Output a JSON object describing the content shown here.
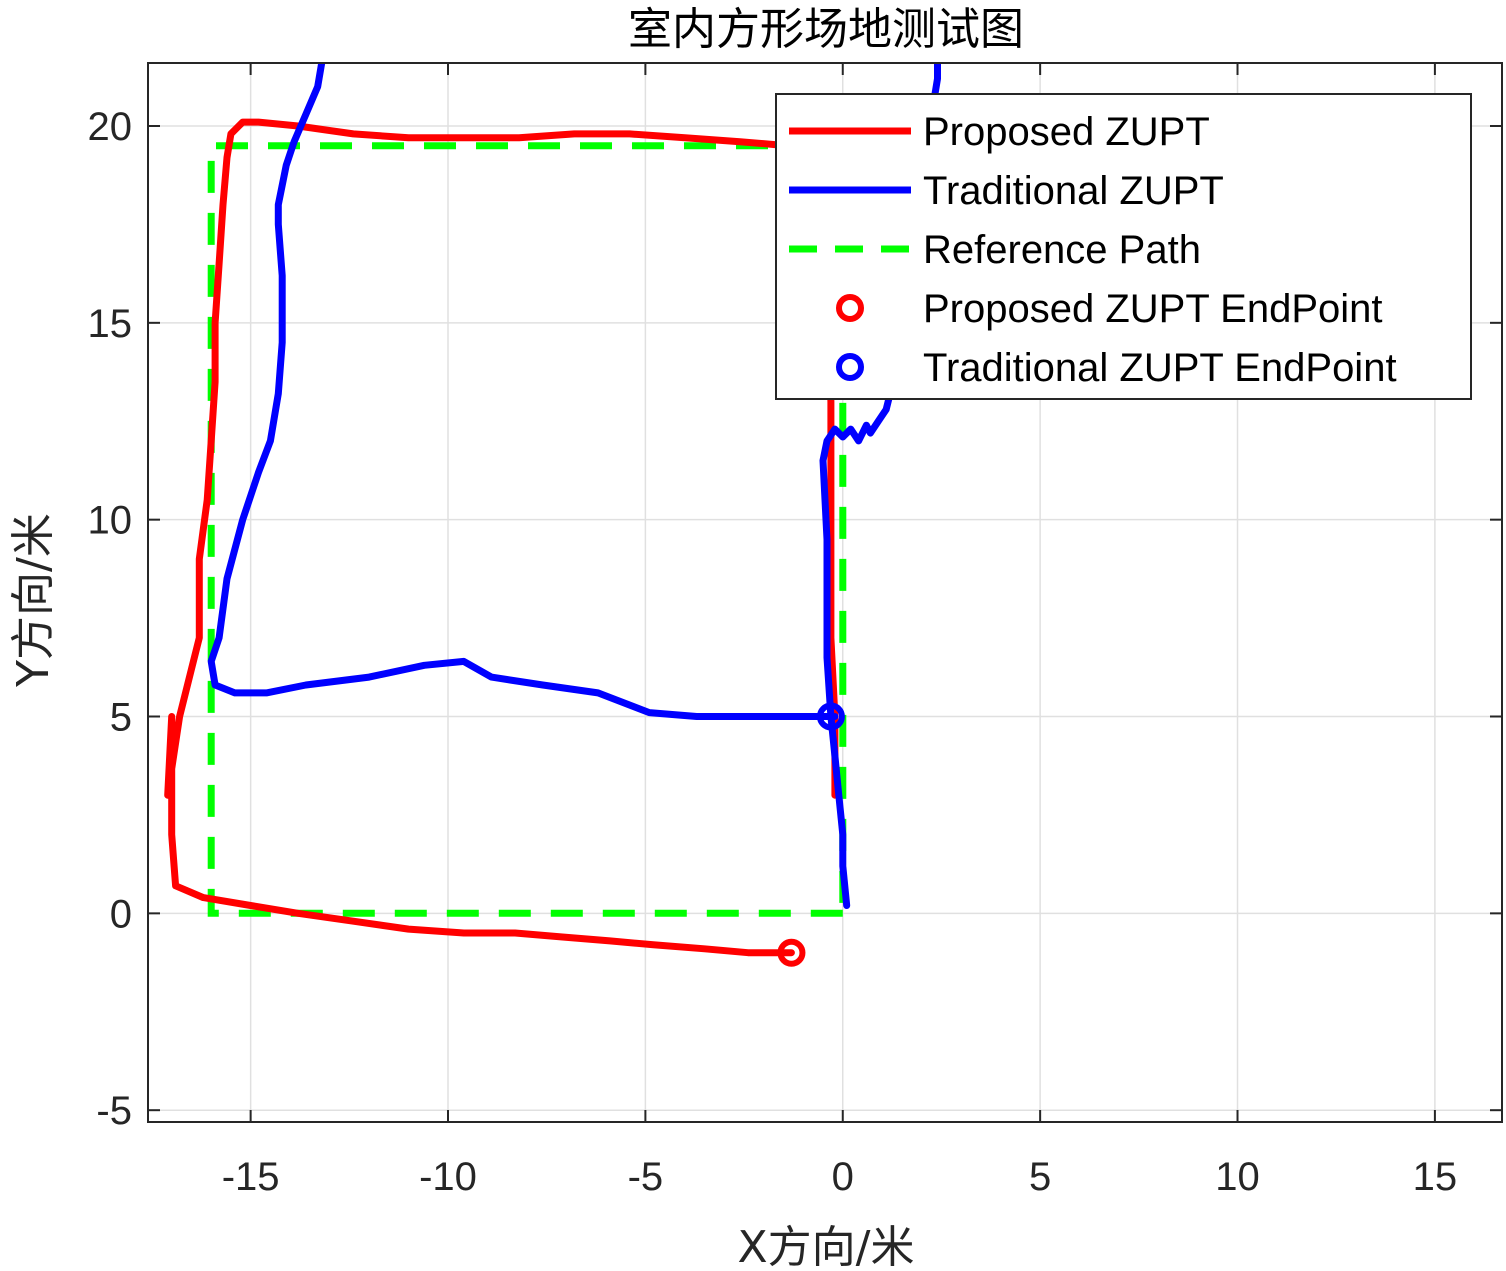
{
  "chart_data": {
    "type": "line",
    "title": "室内方形场地测试图",
    "xlabel": "X方向/米",
    "ylabel": "Y方向/米",
    "xlim": [
      -17.6,
      16.7
    ],
    "ylim": [
      -5.3,
      21.6
    ],
    "xticks": [
      -15,
      -10,
      -5,
      0,
      5,
      10,
      15
    ],
    "yticks": [
      -5,
      0,
      5,
      10,
      15,
      20
    ],
    "grid": true,
    "legend_position": "top-right",
    "colors": {
      "proposed": "#ff0000",
      "traditional": "#0000ff",
      "reference": "#00ff00"
    },
    "series": [
      {
        "name": "Proposed ZUPT",
        "style": "solid",
        "color": "#ff0000",
        "x": [
          -1.3,
          -1.6,
          -2.4,
          -3.5,
          -4.8,
          -5.9,
          -7.1,
          -8.3,
          -9.6,
          -11.0,
          -12.4,
          -13.8,
          -15.0,
          -16.2,
          -16.9,
          -17.0,
          -17.0,
          -17.0,
          -17.1,
          -16.8,
          -16.5,
          -16.3,
          -16.3,
          -16.3,
          -16.1,
          -16.0,
          -15.9,
          -15.9,
          -15.8,
          -15.7,
          -15.6,
          -15.5,
          -15.2,
          -14.8,
          -13.8,
          -12.4,
          -11.0,
          -9.6,
          -8.2,
          -6.8,
          -5.4,
          -4.0,
          -2.6,
          -1.4,
          -0.6,
          -0.4,
          -0.3,
          -0.3,
          -0.3,
          -0.2,
          -0.2,
          -0.2,
          -0.2
        ],
        "y": [
          -1.0,
          -1.0,
          -1.0,
          -0.9,
          -0.8,
          -0.7,
          -0.6,
          -0.5,
          -0.5,
          -0.4,
          -0.2,
          0.0,
          0.2,
          0.4,
          0.7,
          2.0,
          3.5,
          5.0,
          3.0,
          5.0,
          6.2,
          7.0,
          8.0,
          9.0,
          10.5,
          12.0,
          13.5,
          15.0,
          16.5,
          18.0,
          19.2,
          19.8,
          20.1,
          20.1,
          20.0,
          19.8,
          19.7,
          19.7,
          19.7,
          19.8,
          19.8,
          19.7,
          19.6,
          19.5,
          19.0,
          16.0,
          13.0,
          10.0,
          7.0,
          5.0,
          4.0,
          3.5,
          3.0
        ]
      },
      {
        "name": "Traditional ZUPT",
        "style": "solid",
        "color": "#0000ff",
        "x": [
          -0.2,
          -0.7,
          -1.7,
          -2.7,
          -3.7,
          -4.9,
          -6.2,
          -7.6,
          -8.9,
          -9.6,
          -10.6,
          -12.0,
          -13.6,
          -14.6,
          -15.4,
          -15.9,
          -16.0,
          -15.8,
          -15.6,
          -15.2,
          -14.8,
          -14.5,
          -14.3,
          -14.2,
          -14.2,
          -14.3,
          -14.3,
          -14.1,
          -13.9,
          -13.6,
          -13.3,
          -13.2
        ],
        "y": [
          5.0,
          5.0,
          5.0,
          5.0,
          5.0,
          5.1,
          5.6,
          5.8,
          6.0,
          6.4,
          6.3,
          6.0,
          5.8,
          5.6,
          5.6,
          5.8,
          6.4,
          7.0,
          8.5,
          10.0,
          11.2,
          12.0,
          13.2,
          14.5,
          16.2,
          17.5,
          18.0,
          19.0,
          19.6,
          20.3,
          21.0,
          21.6
        ],
        "x2": [
          0.1,
          0.0,
          0.0,
          -0.1,
          -0.2,
          -0.3,
          -0.4,
          -0.4,
          -0.4,
          -0.5,
          -0.4,
          -0.2,
          0.0,
          0.2,
          0.4,
          0.6,
          0.7,
          0.9,
          1.1,
          1.2,
          1.3,
          1.5,
          1.7,
          1.9,
          2.0,
          2.1,
          2.2,
          2.3,
          2.4,
          2.4
        ],
        "y2": [
          0.2,
          1.2,
          2.0,
          3.0,
          4.0,
          5.0,
          6.5,
          8.0,
          9.5,
          11.5,
          12.0,
          12.3,
          12.1,
          12.3,
          12.0,
          12.4,
          12.2,
          12.5,
          12.8,
          13.2,
          14.0,
          15.0,
          16.2,
          17.5,
          18.5,
          19.2,
          20.0,
          20.6,
          21.2,
          21.6
        ]
      },
      {
        "name": "Reference Path",
        "style": "dashed",
        "color": "#00ff00",
        "x": [
          0,
          -16,
          -16,
          0,
          0
        ],
        "y": [
          0,
          0,
          19.5,
          19.5,
          0
        ]
      },
      {
        "name": "Proposed ZUPT EndPoint",
        "style": "marker",
        "color": "#ff0000",
        "x": [
          -1.3
        ],
        "y": [
          -1.0
        ]
      },
      {
        "name": "Traditional ZUPT EndPoint",
        "style": "marker",
        "color": "#0000ff",
        "x": [
          -0.3
        ],
        "y": [
          5.0
        ]
      }
    ]
  }
}
